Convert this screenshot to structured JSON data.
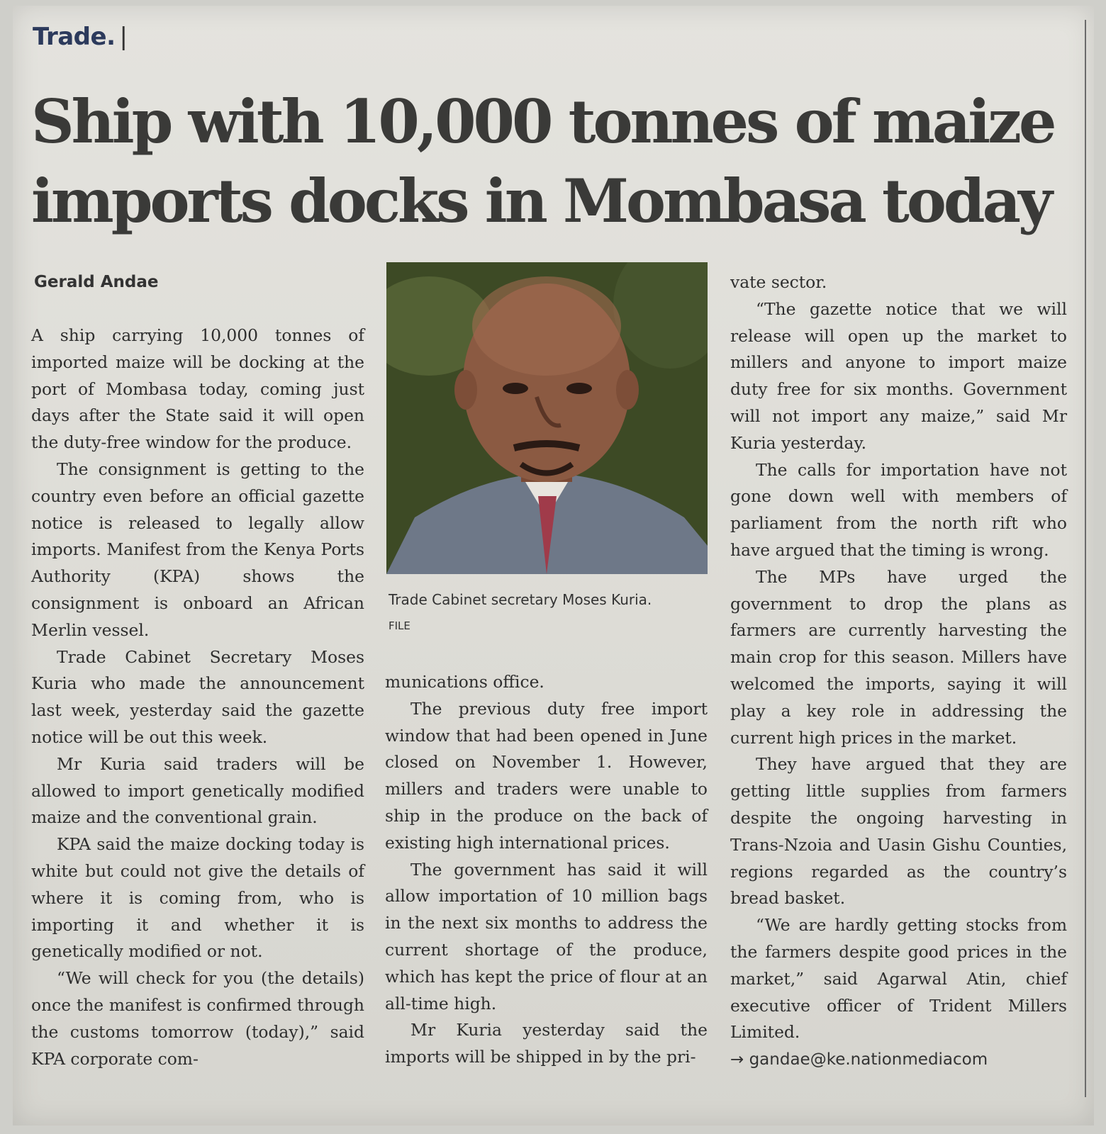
{
  "section": "Trade.",
  "section_bar": "|",
  "headline_line1": "Ship with 10,000 tonnes of maize",
  "headline_line2": "imports docks in Mombasa today",
  "byline": "Gerald Andae",
  "col1": [
    "A ship carrying 10,000 tonnes of imported maize will be docking at the port of Mombasa today, coming just days after the State said it will open the duty-free window for the produce.",
    "The consignment is getting to the country even before an official gazette notice is released to legally allow imports. Manifest from the Kenya Ports Authority (KPA) shows the consignment is onboard an African Merlin vessel.",
    "Trade Cabinet Secretary Moses Kuria who made the announcement last week, yesterday said the gazette notice will be out this week.",
    "Mr Kuria said traders will be allowed to import genetically modified maize and the conventional grain.",
    "KPA said the maize docking today is white but could not give the details of where it is coming from, who is importing it and whether it is genetically modified or not.",
    "“We will check for you (the details) once the manifest is confirmed through the customs tomorrow (today),” said KPA corporate com-"
  ],
  "caption": "Trade Cabinet secretary Moses Kuria.",
  "photo_credit": "FILE",
  "col2": [
    "munications office.",
    "The previous duty free import window that had been opened in June closed on November 1. However, millers and traders were unable to ship in the produce on the back of existing high international prices.",
    "The government has said it will allow importation of 10 million bags in the next six months to address the current shortage of the produce, which has kept the price of flour at an all-time high.",
    "Mr Kuria yesterday said the imports will be shipped in by the pri-"
  ],
  "col3": [
    "vate sector.",
    "“The gazette notice that we will release will open up the market to millers and anyone to import maize duty free for six months. Government will not import any maize,” said Mr Kuria yesterday.",
    "The calls for importation have not gone down well with members of parliament from the north rift who have argued that the timing is wrong.",
    "The MPs have urged the government to drop the plans as farmers are currently harvesting the main crop for this season. Millers have welcomed the imports, saying it will play a key role in addressing the current high prices in the market.",
    "They have argued that they are getting little supplies from farmers despite the ongoing harvesting in Trans-Nzoia and Uasin Gishu Counties, regions regarded as the country’s bread basket.",
    "“We are hardly getting stocks from the farmers despite good prices in the market,” said Agarwal Atin, chief executive officer of Trident Millers Limited."
  ],
  "email": "→ gandae@ke.nationmediacom"
}
